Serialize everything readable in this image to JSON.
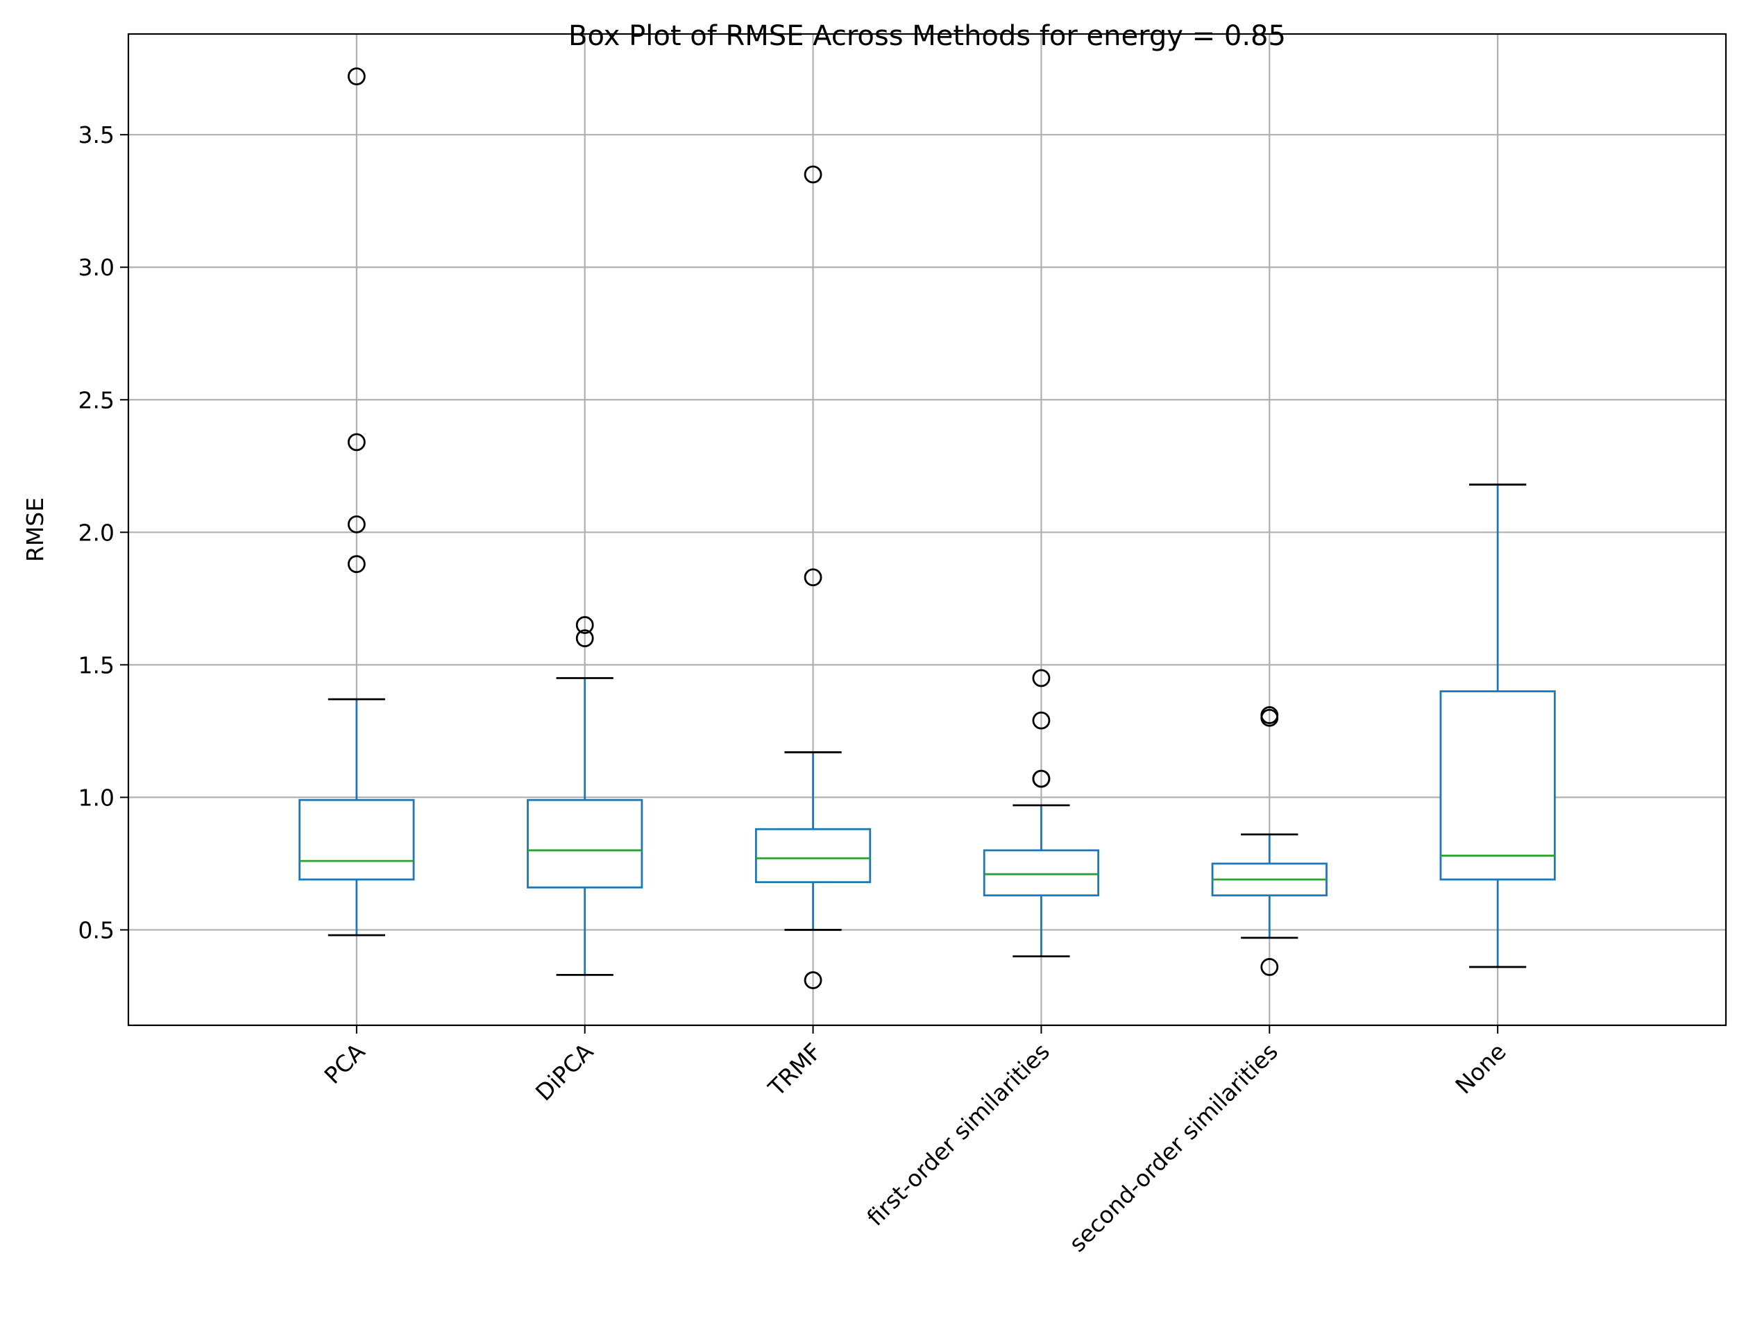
{
  "chart_data": {
    "type": "box",
    "title": "Box Plot of RMSE Across Methods for energy = 0.85",
    "xlabel": "",
    "ylabel": "RMSE",
    "ylim": [
      0.14,
      3.88
    ],
    "yticks": [
      0.5,
      1.0,
      1.5,
      2.0,
      2.5,
      3.0,
      3.5
    ],
    "ytick_labels": [
      "0.5",
      "1.0",
      "1.5",
      "2.0",
      "2.5",
      "3.0",
      "3.5"
    ],
    "grid": true,
    "categories": [
      "PCA",
      "DiPCA",
      "TRMF",
      "first-order similarities",
      "second-order similarities",
      "None"
    ],
    "boxes": [
      {
        "whisker_low": 0.48,
        "q1": 0.69,
        "median": 0.76,
        "q3": 0.99,
        "whisker_high": 1.37,
        "outliers": [
          3.72,
          2.34,
          2.03,
          1.88
        ]
      },
      {
        "whisker_low": 0.33,
        "q1": 0.66,
        "median": 0.8,
        "q3": 0.99,
        "whisker_high": 1.45,
        "outliers": [
          1.65,
          1.6
        ]
      },
      {
        "whisker_low": 0.5,
        "q1": 0.68,
        "median": 0.77,
        "q3": 0.88,
        "whisker_high": 1.17,
        "outliers": [
          3.35,
          1.83,
          0.31
        ]
      },
      {
        "whisker_low": 0.4,
        "q1": 0.63,
        "median": 0.71,
        "q3": 0.8,
        "whisker_high": 0.97,
        "outliers": [
          1.45,
          1.29,
          1.07,
          1.07
        ]
      },
      {
        "whisker_low": 0.47,
        "q1": 0.63,
        "median": 0.69,
        "q3": 0.75,
        "whisker_high": 0.86,
        "outliers": [
          1.31,
          1.3,
          0.36
        ]
      },
      {
        "whisker_low": 0.36,
        "q1": 0.69,
        "median": 0.78,
        "q3": 1.4,
        "whisker_high": 2.18,
        "outliers": []
      }
    ],
    "colors": {
      "box": "#1f77b4",
      "median": "#2ca02c",
      "whisker_cap": "#000000",
      "outlier": "#000000",
      "grid": "#b0b0b0",
      "axes": "#000000"
    }
  }
}
